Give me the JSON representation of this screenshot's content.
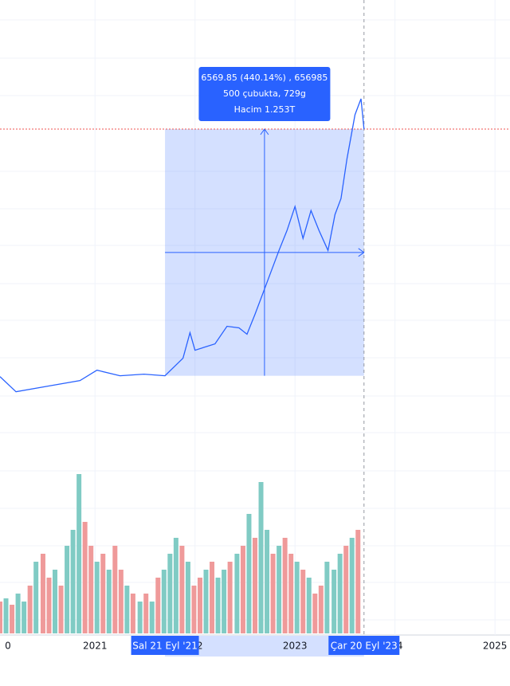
{
  "chart_data": {
    "type": "line",
    "x": [
      2020.05,
      2020.21,
      2020.53,
      2020.85,
      2021.02,
      2021.25,
      2021.49,
      2021.7,
      2021.88,
      2021.95,
      2022.0,
      2022.2,
      2022.32,
      2022.44,
      2022.52,
      2022.6,
      2022.72,
      2022.84,
      2022.92,
      2023.0,
      2023.08,
      2023.16,
      2023.24,
      2023.33,
      2023.4,
      2023.46,
      2023.52,
      2023.6,
      2023.66,
      2023.69
    ],
    "series": [
      {
        "color": "#2962ff",
        "values": [
          1471,
          1068,
          1217,
          1365,
          1642,
          1493,
          1535,
          1493,
          1961,
          2641,
          2173,
          2343,
          2811,
          2769,
          2599,
          3130,
          3980,
          4831,
          5362,
          6000,
          5150,
          5894,
          5362,
          4831,
          5788,
          6213,
          7276,
          8445,
          8870,
          8062
        ]
      }
    ],
    "ylim": [
      0,
      11500
    ],
    "xlim": [
      2020.05,
      2025.15
    ],
    "xticks": [
      {
        "value": 2020,
        "label": "0"
      },
      2021,
      {
        "value": 2022,
        "label": "2"
      },
      2023,
      {
        "value": 2024,
        "label": "4"
      },
      2025
    ],
    "volume": {
      "x": [
        2020.05,
        2020.11,
        2020.17,
        2020.23,
        2020.29,
        2020.35,
        2020.41,
        2020.48,
        2020.54,
        2020.6,
        2020.66,
        2020.72,
        2020.78,
        2020.84,
        2020.9,
        2020.96,
        2021.02,
        2021.08,
        2021.14,
        2021.2,
        2021.26,
        2021.32,
        2021.38,
        2021.45,
        2021.51,
        2021.57,
        2021.63,
        2021.69,
        2021.75,
        2021.81,
        2021.87,
        2021.93,
        2021.99,
        2022.05,
        2022.11,
        2022.17,
        2022.23,
        2022.29,
        2022.35,
        2022.42,
        2022.48,
        2022.54,
        2022.6,
        2022.66,
        2022.72,
        2022.78,
        2022.84,
        2022.9,
        2022.96,
        2023.02,
        2023.08,
        2023.14,
        2023.2,
        2023.26,
        2023.32,
        2023.39,
        2023.45,
        2023.51,
        2023.57,
        2023.63
      ],
      "values": [
        2.0,
        2.2,
        1.8,
        2.5,
        2.0,
        3.0,
        4.5,
        5.0,
        3.5,
        4.0,
        3.0,
        5.5,
        6.5,
        10.0,
        7.0,
        5.5,
        4.5,
        5.0,
        4.0,
        5.5,
        4.0,
        3.0,
        2.5,
        2.0,
        2.5,
        2.0,
        3.5,
        4.0,
        5.0,
        6.0,
        5.5,
        4.5,
        3.0,
        3.5,
        4.0,
        4.5,
        3.5,
        4.0,
        4.5,
        5.0,
        5.5,
        7.5,
        6.0,
        9.5,
        6.5,
        5.0,
        5.5,
        6.0,
        5.0,
        4.5,
        4.0,
        3.5,
        2.5,
        3.0,
        4.5,
        4.0,
        5.0,
        5.5,
        6.0,
        6.5
      ],
      "colors": [
        "#ef9a9a",
        "#80cbc4",
        "#ef9a9a",
        "#80cbc4",
        "#80cbc4",
        "#ef9a9a",
        "#80cbc4",
        "#ef9a9a",
        "#ef9a9a",
        "#80cbc4",
        "#ef9a9a",
        "#80cbc4",
        "#80cbc4",
        "#80cbc4",
        "#ef9a9a",
        "#ef9a9a",
        "#80cbc4",
        "#ef9a9a",
        "#80cbc4",
        "#ef9a9a",
        "#ef9a9a",
        "#80cbc4",
        "#ef9a9a",
        "#80cbc4",
        "#ef9a9a",
        "#80cbc4",
        "#ef9a9a",
        "#80cbc4",
        "#80cbc4",
        "#80cbc4",
        "#ef9a9a",
        "#80cbc4",
        "#ef9a9a",
        "#ef9a9a",
        "#80cbc4",
        "#ef9a9a",
        "#80cbc4",
        "#80cbc4",
        "#ef9a9a",
        "#80cbc4",
        "#ef9a9a",
        "#80cbc4",
        "#ef9a9a",
        "#80cbc4",
        "#80cbc4",
        "#ef9a9a",
        "#80cbc4",
        "#ef9a9a",
        "#ef9a9a",
        "#80cbc4",
        "#ef9a9a",
        "#80cbc4",
        "#ef9a9a",
        "#ef9a9a",
        "#80cbc4",
        "#80cbc4",
        "#80cbc4",
        "#ef9a9a",
        "#80cbc4",
        "#ef9a9a"
      ],
      "ylim": [
        0,
        12
      ]
    },
    "measure": {
      "x": [
        2021.7,
        2023.69
      ],
      "y": [
        1492.7,
        8062.55
      ],
      "color": "#2962ff",
      "lines": [
        "6569.85 (440.14%) , 656985",
        "500 çubukta, 729g",
        "Hacim 1.253T"
      ]
    },
    "x_badges": [
      "Sal 21 Eyl '21",
      "Çar 20 Eyl '23"
    ]
  }
}
